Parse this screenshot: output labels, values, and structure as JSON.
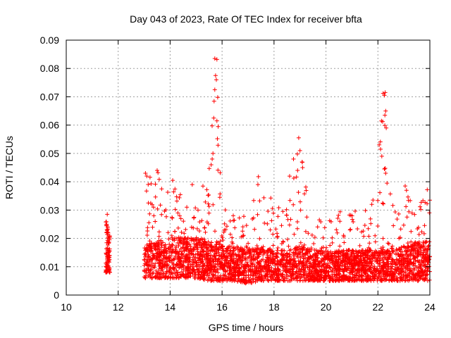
{
  "chart_data": {
    "type": "scatter",
    "title": "Day 043 of 2023, Rate Of TEC Index for receiver bfta",
    "xlabel": "GPS time / hours",
    "ylabel": "ROTI / TECUs",
    "xlim": [
      10,
      24
    ],
    "ylim": [
      0,
      0.09
    ],
    "xticks": [
      "10",
      "12",
      "14",
      "16",
      "18",
      "20",
      "22",
      "24"
    ],
    "yticks": [
      "0",
      "0.01",
      "0.02",
      "0.03",
      "0.04",
      "0.05",
      "0.06",
      "0.07",
      "0.08",
      "0.09"
    ],
    "grid": true,
    "marker": "+",
    "color": "#ff0000",
    "envelope": [
      {
        "x": 11.5,
        "low": 0.008,
        "typ": 0.013,
        "high": 0.028
      },
      {
        "x": 11.7,
        "low": 0.008,
        "typ": 0.013,
        "high": 0.02
      },
      {
        "x": 13.0,
        "low": 0.006,
        "typ": 0.012,
        "high": 0.043
      },
      {
        "x": 13.5,
        "low": 0.006,
        "typ": 0.013,
        "high": 0.044
      },
      {
        "x": 14.0,
        "low": 0.006,
        "typ": 0.014,
        "high": 0.04
      },
      {
        "x": 14.5,
        "low": 0.006,
        "typ": 0.014,
        "high": 0.035
      },
      {
        "x": 15.0,
        "low": 0.006,
        "typ": 0.014,
        "high": 0.034
      },
      {
        "x": 15.5,
        "low": 0.005,
        "typ": 0.013,
        "high": 0.047
      },
      {
        "x": 15.8,
        "low": 0.005,
        "typ": 0.013,
        "high": 0.083
      },
      {
        "x": 16.0,
        "low": 0.005,
        "typ": 0.012,
        "high": 0.035
      },
      {
        "x": 16.5,
        "low": 0.005,
        "typ": 0.012,
        "high": 0.03
      },
      {
        "x": 17.0,
        "low": 0.004,
        "typ": 0.011,
        "high": 0.027
      },
      {
        "x": 17.5,
        "low": 0.005,
        "typ": 0.012,
        "high": 0.042
      },
      {
        "x": 18.0,
        "low": 0.005,
        "typ": 0.011,
        "high": 0.032
      },
      {
        "x": 18.5,
        "low": 0.005,
        "typ": 0.011,
        "high": 0.04
      },
      {
        "x": 19.0,
        "low": 0.005,
        "typ": 0.012,
        "high": 0.055
      },
      {
        "x": 19.5,
        "low": 0.005,
        "typ": 0.011,
        "high": 0.03
      },
      {
        "x": 20.0,
        "low": 0.005,
        "typ": 0.011,
        "high": 0.025
      },
      {
        "x": 20.5,
        "low": 0.005,
        "typ": 0.011,
        "high": 0.031
      },
      {
        "x": 21.0,
        "low": 0.005,
        "typ": 0.011,
        "high": 0.029
      },
      {
        "x": 21.5,
        "low": 0.005,
        "typ": 0.011,
        "high": 0.033
      },
      {
        "x": 22.0,
        "low": 0.005,
        "typ": 0.011,
        "high": 0.053
      },
      {
        "x": 22.25,
        "low": 0.005,
        "typ": 0.012,
        "high": 0.071
      },
      {
        "x": 22.5,
        "low": 0.005,
        "typ": 0.011,
        "high": 0.034
      },
      {
        "x": 23.0,
        "low": 0.005,
        "typ": 0.012,
        "high": 0.038
      },
      {
        "x": 23.5,
        "low": 0.005,
        "typ": 0.013,
        "high": 0.034
      },
      {
        "x": 24.0,
        "low": 0.005,
        "typ": 0.013,
        "high": 0.033
      }
    ],
    "outliers": [
      {
        "x": 11.58,
        "y": 0.0285
      },
      {
        "x": 11.55,
        "y": 0.025
      },
      {
        "x": 11.6,
        "y": 0.024
      },
      {
        "x": 13.05,
        "y": 0.043
      },
      {
        "x": 13.1,
        "y": 0.042
      },
      {
        "x": 13.5,
        "y": 0.044
      },
      {
        "x": 14.1,
        "y": 0.0405
      },
      {
        "x": 14.85,
        "y": 0.039
      },
      {
        "x": 15.72,
        "y": 0.0835
      },
      {
        "x": 15.8,
        "y": 0.0832
      },
      {
        "x": 15.75,
        "y": 0.0775
      },
      {
        "x": 15.78,
        "y": 0.076
      },
      {
        "x": 15.72,
        "y": 0.0725
      },
      {
        "x": 15.83,
        "y": 0.0698
      },
      {
        "x": 15.8,
        "y": 0.0615
      },
      {
        "x": 15.68,
        "y": 0.0625
      },
      {
        "x": 15.85,
        "y": 0.0595
      },
      {
        "x": 15.82,
        "y": 0.0552
      },
      {
        "x": 15.62,
        "y": 0.048
      },
      {
        "x": 15.65,
        "y": 0.05
      },
      {
        "x": 15.58,
        "y": 0.046
      },
      {
        "x": 17.4,
        "y": 0.0418
      },
      {
        "x": 17.38,
        "y": 0.039
      },
      {
        "x": 18.75,
        "y": 0.048
      },
      {
        "x": 18.9,
        "y": 0.0498
      },
      {
        "x": 18.95,
        "y": 0.0555
      },
      {
        "x": 19.0,
        "y": 0.051
      },
      {
        "x": 19.08,
        "y": 0.047
      },
      {
        "x": 19.1,
        "y": 0.045
      },
      {
        "x": 18.6,
        "y": 0.042
      },
      {
        "x": 22.05,
        "y": 0.053
      },
      {
        "x": 22.1,
        "y": 0.0515
      },
      {
        "x": 22.15,
        "y": 0.049
      },
      {
        "x": 22.2,
        "y": 0.0712
      },
      {
        "x": 22.25,
        "y": 0.0705
      },
      {
        "x": 22.28,
        "y": 0.0715
      },
      {
        "x": 22.3,
        "y": 0.065
      },
      {
        "x": 22.27,
        "y": 0.0635
      },
      {
        "x": 22.32,
        "y": 0.059
      },
      {
        "x": 22.25,
        "y": 0.0445
      },
      {
        "x": 22.3,
        "y": 0.043
      },
      {
        "x": 22.35,
        "y": 0.0395
      },
      {
        "x": 23.05,
        "y": 0.0385
      },
      {
        "x": 23.1,
        "y": 0.037
      },
      {
        "x": 23.9,
        "y": 0.0372
      },
      {
        "x": 24.0,
        "y": 0.0335
      }
    ]
  }
}
